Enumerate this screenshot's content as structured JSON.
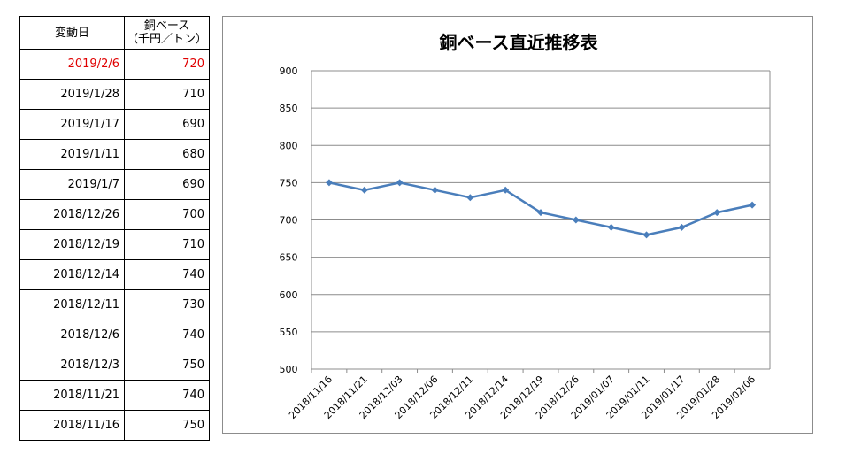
{
  "table": {
    "header_date": "変動日",
    "header_value_line1": "銅ベース",
    "header_value_line2": "（千円／トン）",
    "rows": [
      {
        "date": "2019/2/6",
        "value": "720",
        "highlight": true
      },
      {
        "date": "2019/1/28",
        "value": "710"
      },
      {
        "date": "2019/1/17",
        "value": "690"
      },
      {
        "date": "2019/1/11",
        "value": "680"
      },
      {
        "date": "2019/1/7",
        "value": "690"
      },
      {
        "date": "2018/12/26",
        "value": "700"
      },
      {
        "date": "2018/12/19",
        "value": "710"
      },
      {
        "date": "2018/12/14",
        "value": "740"
      },
      {
        "date": "2018/12/11",
        "value": "730"
      },
      {
        "date": "2018/12/6",
        "value": "740"
      },
      {
        "date": "2018/12/3",
        "value": "750"
      },
      {
        "date": "2018/11/21",
        "value": "740"
      },
      {
        "date": "2018/11/16",
        "value": "750"
      }
    ]
  },
  "colors": {
    "line": "#4a7ebb",
    "highlight_text": "#e00000",
    "grid": "#8c8c8c"
  },
  "chart_data": {
    "type": "line",
    "title": "銅ベース直近推移表",
    "x": [
      "2018/11/16",
      "2018/11/21",
      "2018/12/03",
      "2018/12/06",
      "2018/12/11",
      "2018/12/14",
      "2018/12/19",
      "2018/12/26",
      "2019/01/07",
      "2019/01/11",
      "2019/01/17",
      "2019/01/28",
      "2019/02/06"
    ],
    "series": [
      {
        "values": [
          750,
          740,
          750,
          740,
          730,
          740,
          710,
          700,
          690,
          680,
          690,
          710,
          720
        ]
      }
    ],
    "ylim": [
      500,
      900
    ],
    "yticks": [
      500,
      550,
      600,
      650,
      700,
      750,
      800,
      850,
      900
    ],
    "grid": true,
    "marker": "diamond",
    "xlabel": "",
    "ylabel": ""
  }
}
